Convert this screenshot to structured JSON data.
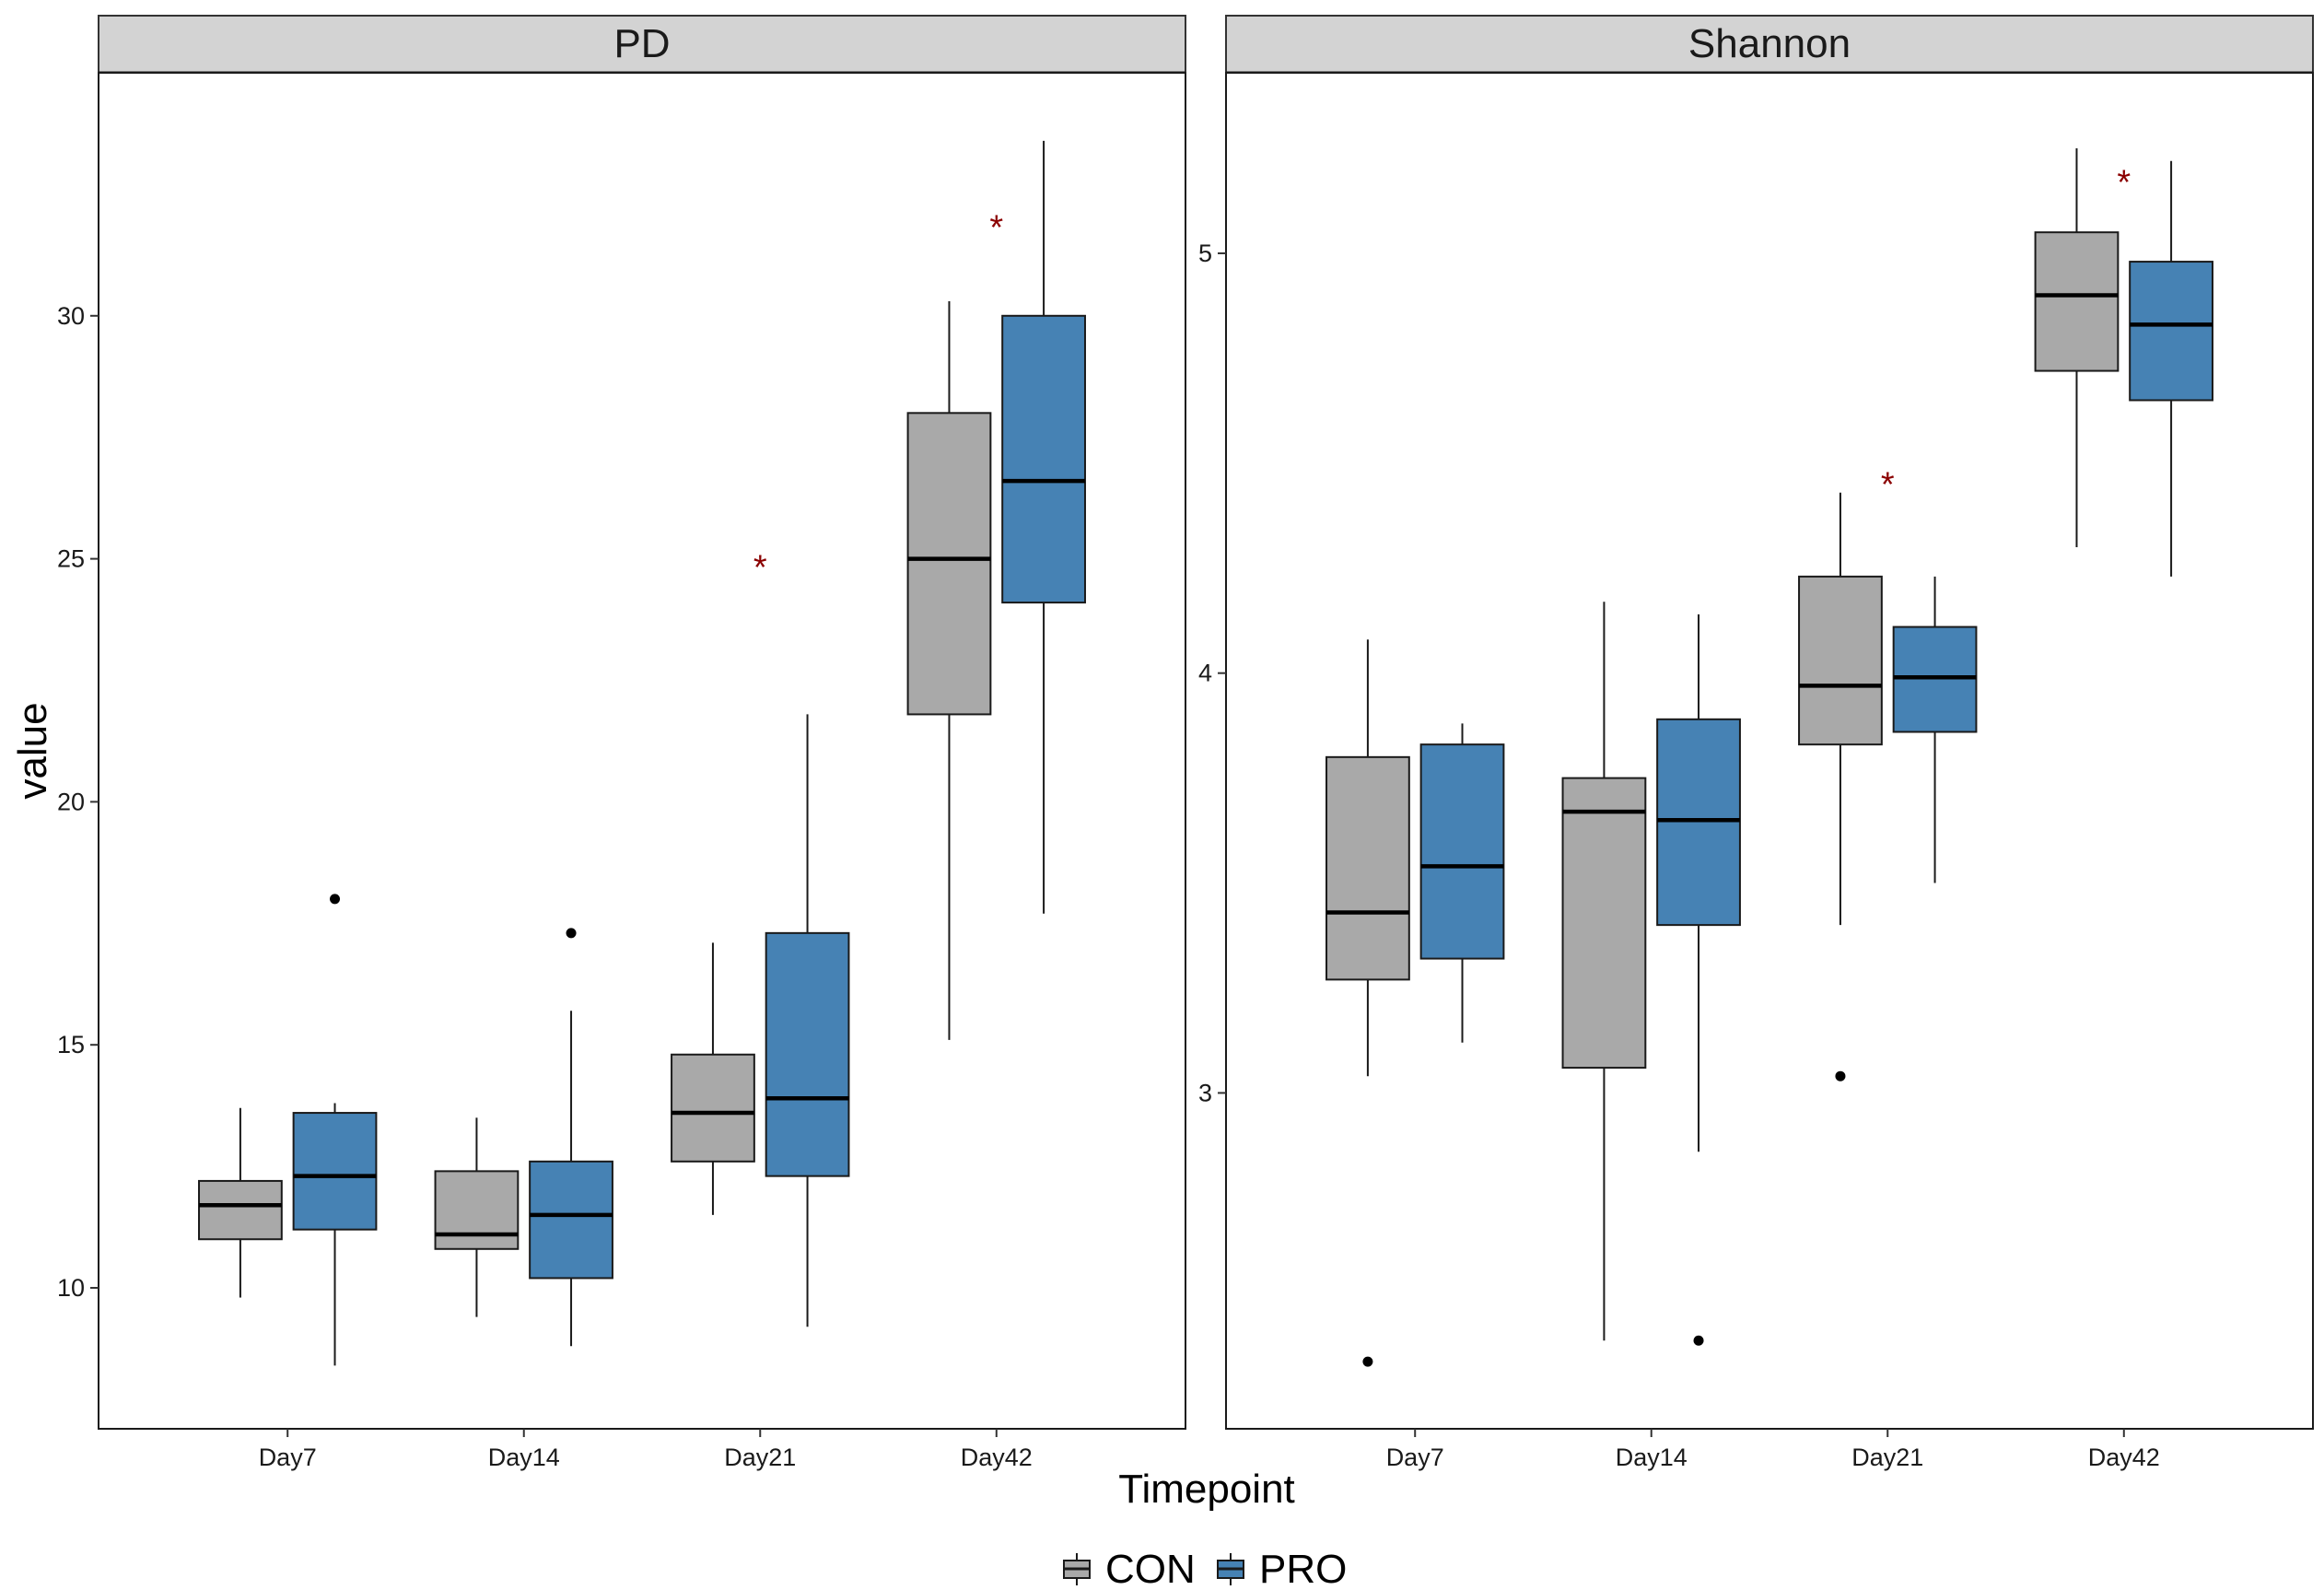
{
  "chart_data": {
    "type": "boxplot",
    "facets": [
      "PD",
      "Shannon"
    ],
    "xlabel": "Timepoint",
    "ylabel": "value",
    "categories": [
      "Day7",
      "Day14",
      "Day21",
      "Day42"
    ],
    "groups": [
      {
        "name": "CON",
        "color": "#a9a9a9"
      },
      {
        "name": "PRO",
        "color": "#4682b4"
      }
    ],
    "significance_color": "#8b0000",
    "legend_position": "bottom",
    "panels": [
      {
        "name": "PD",
        "ylim": [
          7.1,
          35.0
        ],
        "yticks": [
          10,
          15,
          20,
          25,
          30
        ],
        "boxes": [
          {
            "category": "Day7",
            "group": "CON",
            "whisker_low": 9.8,
            "q1": 11.0,
            "median": 11.7,
            "q3": 12.2,
            "whisker_high": 13.7,
            "outliers": []
          },
          {
            "category": "Day7",
            "group": "PRO",
            "whisker_low": 8.4,
            "q1": 11.2,
            "median": 12.3,
            "q3": 13.6,
            "whisker_high": 13.8,
            "outliers": [
              18.0
            ]
          },
          {
            "category": "Day14",
            "group": "CON",
            "whisker_low": 9.4,
            "q1": 10.8,
            "median": 11.1,
            "q3": 12.4,
            "whisker_high": 13.5,
            "outliers": []
          },
          {
            "category": "Day14",
            "group": "PRO",
            "whisker_low": 8.8,
            "q1": 10.2,
            "median": 11.5,
            "q3": 12.6,
            "whisker_high": 15.7,
            "outliers": [
              17.3
            ]
          },
          {
            "category": "Day21",
            "group": "CON",
            "whisker_low": 11.5,
            "q1": 12.6,
            "median": 13.6,
            "q3": 14.8,
            "whisker_high": 17.1,
            "outliers": []
          },
          {
            "category": "Day21",
            "group": "PRO",
            "whisker_low": 9.2,
            "q1": 12.3,
            "median": 13.9,
            "q3": 17.3,
            "whisker_high": 21.8,
            "outliers": []
          },
          {
            "category": "Day42",
            "group": "CON",
            "whisker_low": 15.1,
            "q1": 21.8,
            "median": 25.0,
            "q3": 28.0,
            "whisker_high": 30.3,
            "outliers": []
          },
          {
            "category": "Day42",
            "group": "PRO",
            "whisker_low": 17.7,
            "q1": 24.1,
            "median": 26.6,
            "q3": 30.0,
            "whisker_high": 33.6,
            "outliers": []
          }
        ],
        "significance": [
          {
            "category": "Day21",
            "label": "*",
            "y": 25.0
          },
          {
            "category": "Day42",
            "label": "*",
            "y": 32.0
          }
        ]
      },
      {
        "name": "Shannon",
        "ylim": [
          2.2,
          5.43
        ],
        "yticks": [
          3,
          4,
          5
        ],
        "boxes": [
          {
            "category": "Day7",
            "group": "CON",
            "whisker_low": 3.04,
            "q1": 3.27,
            "median": 3.43,
            "q3": 3.8,
            "whisker_high": 4.08,
            "outliers": [
              2.36
            ]
          },
          {
            "category": "Day7",
            "group": "PRO",
            "whisker_low": 3.12,
            "q1": 3.32,
            "median": 3.54,
            "q3": 3.83,
            "whisker_high": 3.88,
            "outliers": []
          },
          {
            "category": "Day14",
            "group": "CON",
            "whisker_low": 2.41,
            "q1": 3.06,
            "median": 3.67,
            "q3": 3.75,
            "whisker_high": 4.17,
            "outliers": []
          },
          {
            "category": "Day14",
            "group": "PRO",
            "whisker_low": 2.86,
            "q1": 3.4,
            "median": 3.65,
            "q3": 3.89,
            "whisker_high": 4.14,
            "outliers": [
              2.41
            ]
          },
          {
            "category": "Day21",
            "group": "CON",
            "whisker_low": 3.4,
            "q1": 3.83,
            "median": 3.97,
            "q3": 4.23,
            "whisker_high": 4.43,
            "outliers": [
              3.04
            ]
          },
          {
            "category": "Day21",
            "group": "PRO",
            "whisker_low": 3.5,
            "q1": 3.86,
            "median": 3.99,
            "q3": 4.11,
            "whisker_high": 4.23,
            "outliers": []
          },
          {
            "category": "Day42",
            "group": "CON",
            "whisker_low": 4.3,
            "q1": 4.72,
            "median": 4.9,
            "q3": 5.05,
            "whisker_high": 5.25,
            "outliers": []
          },
          {
            "category": "Day42",
            "group": "PRO",
            "whisker_low": 4.23,
            "q1": 4.65,
            "median": 4.83,
            "q3": 4.98,
            "whisker_high": 5.22,
            "outliers": []
          }
        ],
        "significance": [
          {
            "category": "Day21",
            "label": "*",
            "y": 4.47
          },
          {
            "category": "Day42",
            "label": "*",
            "y": 5.19
          }
        ]
      }
    ]
  }
}
